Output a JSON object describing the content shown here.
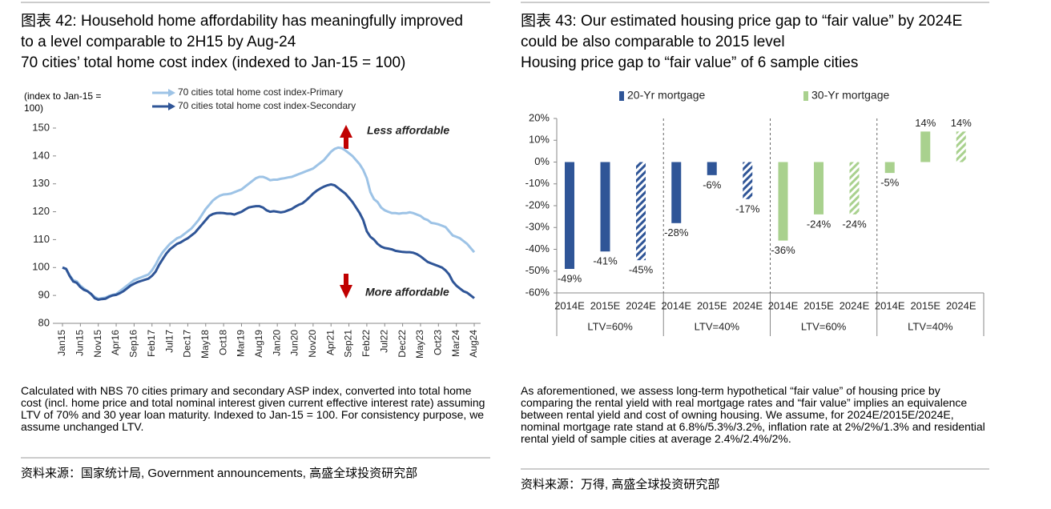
{
  "chart_data": [
    {
      "type": "line",
      "title": "图表 42: Household home affordability has meaningfully improved to a level comparable to 2H15 by Aug-24",
      "subtitle": "70 cities’ total home cost index (indexed to Jan-15 = 100)",
      "y_label": "(index to Jan-15 = 100)",
      "annotations": [
        "Less affordable",
        "More affordable"
      ],
      "note": "Calculated with NBS 70 cities primary and secondary ASP index, converted into total home cost (incl. home price and total nominal interest given current effective interest rate) assuming LTV of 70% and 30 year loan maturity. Indexed to Jan-15 = 100. For consistency purpose, we assume unchanged LTV.",
      "source": "资料来源：国家统计局, Government announcements, 高盛全球投资研究部",
      "categories": [
        "Jan15",
        null,
        null,
        null,
        null,
        "Jun15",
        null,
        null,
        null,
        null,
        "Nov15",
        null,
        null,
        null,
        null,
        "Apr16",
        null,
        null,
        null,
        null,
        "Sep16",
        null,
        null,
        null,
        null,
        "Feb17",
        null,
        null,
        null,
        null,
        "Jul17",
        null,
        null,
        null,
        null,
        "Dec17",
        null,
        null,
        null,
        null,
        "May18",
        null,
        null,
        null,
        null,
        "Oct18",
        null,
        null,
        null,
        null,
        "Mar19",
        null,
        null,
        null,
        null,
        "Aug19",
        null,
        null,
        null,
        null,
        "Jan20",
        null,
        null,
        null,
        null,
        "Jun20",
        null,
        null,
        null,
        null,
        "Nov20",
        null,
        null,
        null,
        null,
        "Apr21",
        null,
        null,
        null,
        null,
        "Sep21",
        null,
        null,
        null,
        null,
        "Feb22",
        null,
        null,
        null,
        null,
        "Jul22",
        null,
        null,
        null,
        null,
        "Dec22",
        null,
        null,
        null,
        null,
        "May23",
        null,
        null,
        null,
        null,
        "Oct23",
        null,
        null,
        null,
        null,
        "Mar24",
        null,
        null,
        null,
        null,
        "Aug24"
      ],
      "series": [
        {
          "name": "70 cities total home cost index-Primary",
          "color": "#9dc3e6",
          "values": [
            100,
            99.5,
            97.2,
            95.5,
            95,
            93.5,
            92.5,
            91.5,
            90.5,
            89.5,
            88.8,
            89,
            89.2,
            89.8,
            90.2,
            90.5,
            91.5,
            92.5,
            93.5,
            94.5,
            95.5,
            96,
            96.5,
            97,
            97.5,
            99,
            101,
            103.5,
            105.5,
            107,
            108.5,
            109.5,
            110.5,
            111,
            112,
            113,
            114,
            115.5,
            117,
            119,
            121,
            122.5,
            124,
            125,
            125.8,
            126.2,
            126.3,
            126.5,
            127,
            127.5,
            128,
            129,
            130,
            131,
            132,
            132.5,
            132.5,
            132,
            131.3,
            131.5,
            131.5,
            131.8,
            132,
            132.3,
            132.5,
            133,
            133.5,
            134,
            134.5,
            135,
            135.5,
            136.5,
            137.5,
            138.5,
            140,
            141.5,
            142.5,
            143,
            142.8,
            142,
            141,
            140,
            138.5,
            137,
            135,
            132,
            127,
            124.5,
            123.5,
            121.5,
            120.5,
            120,
            119.5,
            119.5,
            119.3,
            119.5,
            119.5,
            119.8,
            119.5,
            119,
            118.5,
            117.5,
            117,
            116,
            115.8,
            115.5,
            115,
            114.5,
            113,
            111.5,
            111,
            110.5,
            109.5,
            108.5,
            107,
            105.5
          ]
        },
        {
          "name": "70 cities total home cost index-Secondary",
          "color": "#2f5597",
          "values": [
            100,
            99.5,
            97,
            95,
            94.5,
            93,
            92,
            91.5,
            90.5,
            89,
            88.5,
            88.7,
            88.8,
            89.5,
            90,
            90.2,
            90.8,
            91.5,
            92.5,
            93.5,
            94.2,
            94.8,
            95.2,
            95.6,
            96,
            97,
            98.5,
            101,
            103,
            105,
            106.5,
            107.5,
            108.5,
            109,
            109.8,
            110.5,
            111.5,
            112.5,
            114,
            115.5,
            117,
            118.5,
            119.2,
            119.5,
            119.6,
            119.5,
            119.3,
            119.3,
            119,
            119.5,
            120,
            120.8,
            121.5,
            121.8,
            122,
            122,
            121.5,
            120.5,
            120,
            120.2,
            120,
            119.8,
            120,
            120.5,
            121,
            121.8,
            122.5,
            123,
            124,
            125.2,
            126.5,
            127.5,
            128.3,
            129,
            129.5,
            129.8,
            129.5,
            128.5,
            127.5,
            126.5,
            125,
            123.5,
            121.5,
            119.5,
            117,
            113,
            111,
            110,
            108.5,
            107.5,
            107,
            106.8,
            106.5,
            106,
            105.8,
            105.6,
            105.5,
            105.5,
            105.3,
            104.8,
            104,
            103,
            102,
            101.5,
            101,
            100.5,
            100,
            99,
            97.5,
            95,
            93.5,
            92.5,
            91.5,
            91,
            90,
            89
          ]
        }
      ],
      "ylim": [
        80,
        150
      ],
      "yticks": [
        80,
        90,
        100,
        110,
        120,
        130,
        140,
        150
      ],
      "grid": false
    },
    {
      "type": "bar",
      "title": "图表 43: Our estimated housing price gap to “fair value” by 2024E could be also comparable to 2015 level",
      "subtitle": "Housing price gap to “fair value” of 6 sample cities",
      "note": "As aforementioned, we assess long-term hypothetical “fair value” of housing price by comparing the rental yield with real mortgage rates and “fair value” implies an equivalence between rental yield and cost of owning housing. We assume, for 2024E/2015E/2024E, nominal mortgage rate stand at 6.8%/5.3%/3.2%, inflation rate at 2%/2%/1.3% and residential rental yield of sample cities at average 2.4%/2.4%/2%.",
      "source": "资料来源：万得, 高盛全球投资研究部",
      "categories": [
        "2014E",
        "2015E",
        "2024E",
        "2014E",
        "2015E",
        "2024E",
        "2014E",
        "2015E",
        "2024E",
        "2014E",
        "2015E",
        "2024E"
      ],
      "groups": [
        "LTV=60%",
        "LTV=40%",
        "LTV=60%",
        "LTV=40%"
      ],
      "hatched": [
        false,
        false,
        true,
        false,
        false,
        true,
        false,
        false,
        true,
        false,
        false,
        true
      ],
      "series": [
        {
          "name": "20-Yr mortgage",
          "color": "#2f5597",
          "values": [
            -49,
            -41,
            -45,
            -28,
            -6,
            -17,
            null,
            null,
            null,
            null,
            null,
            null
          ],
          "value_labels": [
            "-49%",
            "-41%",
            "-45%",
            "-28%",
            "-6%",
            "-17%",
            null,
            null,
            null,
            null,
            null,
            null
          ]
        },
        {
          "name": "30-Yr mortgage",
          "color": "#a9d18e",
          "values": [
            null,
            null,
            null,
            null,
            null,
            null,
            -36,
            -24,
            -24,
            -5,
            14,
            14
          ],
          "value_labels": [
            null,
            null,
            null,
            null,
            null,
            null,
            "-36%",
            "-24%",
            "-24%",
            "-5%",
            "14%",
            "14%"
          ]
        }
      ],
      "ylim": [
        -60,
        20
      ],
      "yticks": [
        {
          "value": -60,
          "label": "-60%"
        },
        {
          "value": -50,
          "label": "-50%"
        },
        {
          "value": -40,
          "label": "-40%"
        },
        {
          "value": -30,
          "label": "-30%"
        },
        {
          "value": -20,
          "label": "-20%"
        },
        {
          "value": -10,
          "label": "-10%"
        },
        {
          "value": 0,
          "label": "0%"
        },
        {
          "value": 10,
          "label": "10%"
        },
        {
          "value": 20,
          "label": "20%"
        }
      ],
      "grid": false
    }
  ]
}
